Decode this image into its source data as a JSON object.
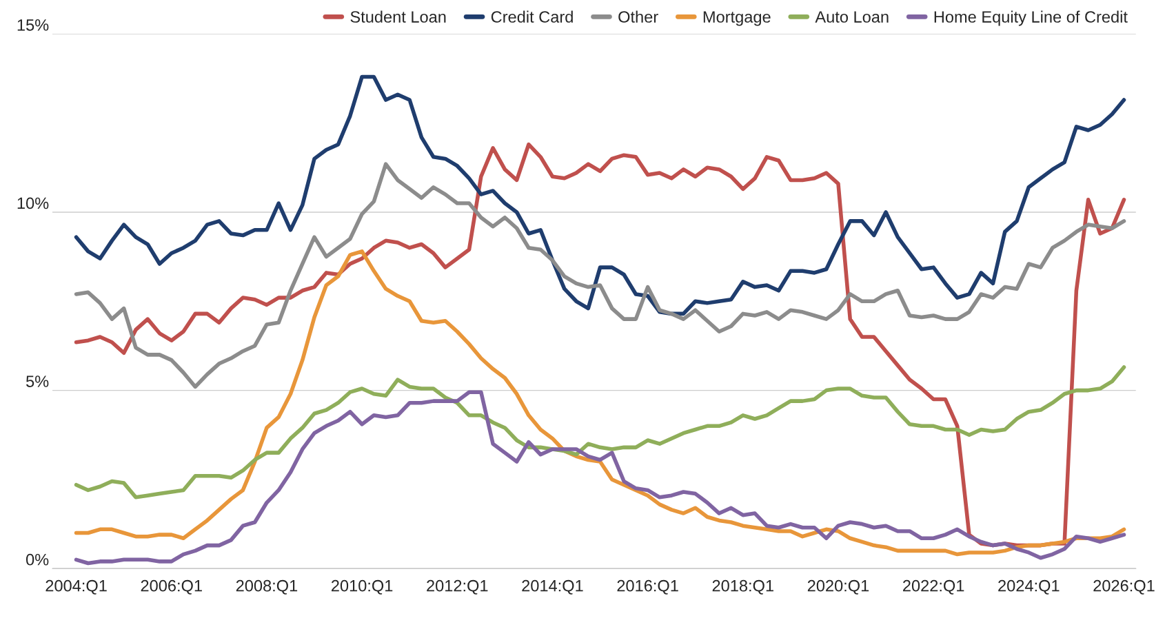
{
  "chart_data": {
    "type": "line",
    "categories": [
      "2004:Q1",
      null,
      null,
      null,
      null,
      null,
      null,
      null,
      "2006:Q1",
      null,
      null,
      null,
      null,
      null,
      null,
      null,
      "2008:Q1",
      null,
      null,
      null,
      null,
      null,
      null,
      null,
      "2010:Q1",
      null,
      null,
      null,
      null,
      null,
      null,
      null,
      "2012:Q1",
      null,
      null,
      null,
      null,
      null,
      null,
      null,
      "2014:Q1",
      null,
      null,
      null,
      null,
      null,
      null,
      null,
      "2016:Q1",
      null,
      null,
      null,
      null,
      null,
      null,
      null,
      "2018:Q1",
      null,
      null,
      null,
      null,
      null,
      null,
      null,
      "2020:Q1",
      null,
      null,
      null,
      null,
      null,
      null,
      null,
      "2022:Q1",
      null,
      null,
      null,
      null,
      null,
      null,
      null,
      "2024:Q1",
      null,
      null,
      null,
      null,
      null,
      null,
      null,
      "2026:Q1"
    ],
    "series": [
      {
        "name": "Student Loan",
        "color": "#c0504d",
        "values": [
          6.35,
          6.4,
          6.5,
          6.35,
          6.05,
          6.7,
          7.0,
          6.6,
          6.4,
          6.65,
          7.15,
          7.15,
          6.9,
          7.3,
          7.6,
          7.55,
          7.4,
          7.6,
          7.6,
          7.8,
          7.9,
          8.3,
          8.25,
          8.55,
          8.7,
          9.0,
          9.2,
          9.15,
          9.0,
          9.1,
          8.85,
          8.45,
          8.7,
          8.95,
          11.0,
          11.8,
          11.2,
          10.9,
          11.9,
          11.55,
          11.0,
          10.95,
          11.1,
          11.35,
          11.15,
          11.5,
          11.6,
          11.55,
          11.05,
          11.1,
          10.95,
          11.2,
          11.0,
          11.25,
          11.2,
          11.0,
          10.65,
          10.95,
          11.55,
          11.45,
          10.9,
          10.9,
          10.95,
          11.1,
          10.8,
          7.0,
          6.5,
          6.5,
          6.1,
          5.7,
          5.3,
          5.05,
          4.75,
          4.75,
          4.0,
          0.95,
          0.7,
          0.65,
          0.7,
          0.65,
          0.65,
          0.65,
          0.7,
          0.7,
          7.8,
          10.35,
          9.4,
          9.55,
          10.35
        ]
      },
      {
        "name": "Credit Card",
        "color": "#1f3d6e",
        "values": [
          9.3,
          8.9,
          8.7,
          9.2,
          9.65,
          9.3,
          9.1,
          8.55,
          8.85,
          9.0,
          9.2,
          9.65,
          9.75,
          9.4,
          9.35,
          9.5,
          9.5,
          10.25,
          9.5,
          10.2,
          11.5,
          11.75,
          11.9,
          12.7,
          13.8,
          13.8,
          13.15,
          13.3,
          13.15,
          12.1,
          11.55,
          11.5,
          11.3,
          10.95,
          10.5,
          10.6,
          10.25,
          10.0,
          9.4,
          9.5,
          8.65,
          7.85,
          7.5,
          7.3,
          8.45,
          8.45,
          8.25,
          7.7,
          7.65,
          7.2,
          7.15,
          7.15,
          7.5,
          7.45,
          7.5,
          7.55,
          8.05,
          7.9,
          7.95,
          7.8,
          8.35,
          8.35,
          8.3,
          8.4,
          9.1,
          9.75,
          9.75,
          9.35,
          10.0,
          9.3,
          8.85,
          8.4,
          8.45,
          8.0,
          7.6,
          7.7,
          8.3,
          8.0,
          9.45,
          9.75,
          10.7,
          10.95,
          11.2,
          11.4,
          12.4,
          12.3,
          12.45,
          12.75,
          13.15
        ]
      },
      {
        "name": "Other",
        "color": "#8c8c8c",
        "values": [
          7.7,
          7.75,
          7.45,
          7.0,
          7.3,
          6.2,
          6.0,
          6.0,
          5.85,
          5.5,
          5.1,
          5.45,
          5.75,
          5.9,
          6.1,
          6.25,
          6.85,
          6.9,
          7.8,
          8.55,
          9.3,
          8.75,
          9.0,
          9.25,
          9.95,
          10.3,
          11.35,
          10.9,
          10.65,
          10.4,
          10.7,
          10.5,
          10.25,
          10.25,
          9.85,
          9.6,
          9.85,
          9.55,
          9.0,
          8.95,
          8.65,
          8.2,
          8.0,
          7.9,
          7.95,
          7.3,
          7.0,
          7.0,
          7.9,
          7.25,
          7.15,
          7.0,
          7.25,
          6.95,
          6.65,
          6.8,
          7.15,
          7.1,
          7.2,
          7.0,
          7.25,
          7.2,
          7.1,
          7.0,
          7.25,
          7.7,
          7.5,
          7.5,
          7.7,
          7.8,
          7.1,
          7.05,
          7.1,
          7.0,
          7.0,
          7.2,
          7.7,
          7.6,
          7.9,
          7.85,
          8.55,
          8.45,
          9.0,
          9.2,
          9.45,
          9.65,
          9.6,
          9.55,
          9.75
        ]
      },
      {
        "name": "Mortgage",
        "color": "#e8963a",
        "values": [
          1.0,
          1.0,
          1.1,
          1.1,
          1.0,
          0.9,
          0.9,
          0.95,
          0.95,
          0.85,
          1.1,
          1.35,
          1.65,
          1.95,
          2.2,
          3.0,
          3.95,
          4.25,
          4.9,
          5.85,
          7.05,
          7.95,
          8.2,
          8.8,
          8.9,
          8.35,
          7.85,
          7.65,
          7.5,
          6.95,
          6.9,
          6.95,
          6.65,
          6.3,
          5.9,
          5.6,
          5.35,
          4.9,
          4.3,
          3.9,
          3.65,
          3.3,
          3.15,
          3.05,
          3.0,
          2.5,
          2.35,
          2.2,
          2.05,
          1.8,
          1.65,
          1.55,
          1.7,
          1.45,
          1.35,
          1.3,
          1.2,
          1.15,
          1.1,
          1.05,
          1.05,
          0.9,
          1.0,
          1.1,
          1.05,
          0.85,
          0.75,
          0.65,
          0.6,
          0.5,
          0.5,
          0.5,
          0.5,
          0.5,
          0.4,
          0.45,
          0.45,
          0.45,
          0.5,
          0.6,
          0.65,
          0.65,
          0.7,
          0.75,
          0.85,
          0.85,
          0.85,
          0.9,
          1.1
        ]
      },
      {
        "name": "Auto Loan",
        "color": "#8fae5a",
        "values": [
          2.35,
          2.2,
          2.3,
          2.45,
          2.4,
          2.0,
          2.05,
          2.1,
          2.15,
          2.2,
          2.6,
          2.6,
          2.6,
          2.55,
          2.75,
          3.05,
          3.25,
          3.25,
          3.65,
          3.95,
          4.35,
          4.45,
          4.65,
          4.95,
          5.05,
          4.9,
          4.85,
          5.3,
          5.1,
          5.05,
          5.05,
          4.8,
          4.65,
          4.3,
          4.3,
          4.1,
          3.95,
          3.6,
          3.4,
          3.4,
          3.35,
          3.3,
          3.2,
          3.5,
          3.4,
          3.35,
          3.4,
          3.4,
          3.6,
          3.5,
          3.65,
          3.8,
          3.9,
          4.0,
          4.0,
          4.1,
          4.3,
          4.2,
          4.3,
          4.5,
          4.7,
          4.7,
          4.75,
          5.0,
          5.05,
          5.05,
          4.85,
          4.8,
          4.8,
          4.4,
          4.05,
          4.0,
          4.0,
          3.9,
          3.9,
          3.75,
          3.9,
          3.85,
          3.9,
          4.2,
          4.4,
          4.45,
          4.65,
          4.9,
          5.0,
          5.0,
          5.05,
          5.25,
          5.65
        ]
      },
      {
        "name": "Home Equity Line of Credit",
        "color": "#8064a2",
        "values": [
          0.25,
          0.15,
          0.2,
          0.2,
          0.25,
          0.25,
          0.25,
          0.2,
          0.2,
          0.4,
          0.5,
          0.65,
          0.65,
          0.8,
          1.2,
          1.3,
          1.85,
          2.2,
          2.7,
          3.35,
          3.8,
          4.0,
          4.15,
          4.4,
          4.05,
          4.3,
          4.25,
          4.3,
          4.65,
          4.65,
          4.7,
          4.7,
          4.7,
          4.95,
          4.95,
          3.5,
          3.25,
          3.0,
          3.55,
          3.2,
          3.35,
          3.35,
          3.35,
          3.15,
          3.05,
          3.25,
          2.45,
          2.25,
          2.2,
          2.0,
          2.05,
          2.15,
          2.1,
          1.85,
          1.55,
          1.7,
          1.5,
          1.55,
          1.2,
          1.15,
          1.25,
          1.15,
          1.15,
          0.85,
          1.2,
          1.3,
          1.25,
          1.15,
          1.2,
          1.05,
          1.05,
          0.85,
          0.85,
          0.95,
          1.1,
          0.9,
          0.75,
          0.65,
          0.7,
          0.55,
          0.45,
          0.3,
          0.4,
          0.55,
          0.9,
          0.85,
          0.75,
          0.85,
          0.95
        ]
      }
    ],
    "ylim": [
      0,
      15
    ],
    "yticks": [
      {
        "value": 0,
        "label": "0%"
      },
      {
        "value": 5,
        "label": "5%"
      },
      {
        "value": 10,
        "label": "10%"
      },
      {
        "value": 15,
        "label": "15%"
      }
    ],
    "grid": "y",
    "legend": "top right",
    "marker": "none",
    "line_style": "solid"
  }
}
